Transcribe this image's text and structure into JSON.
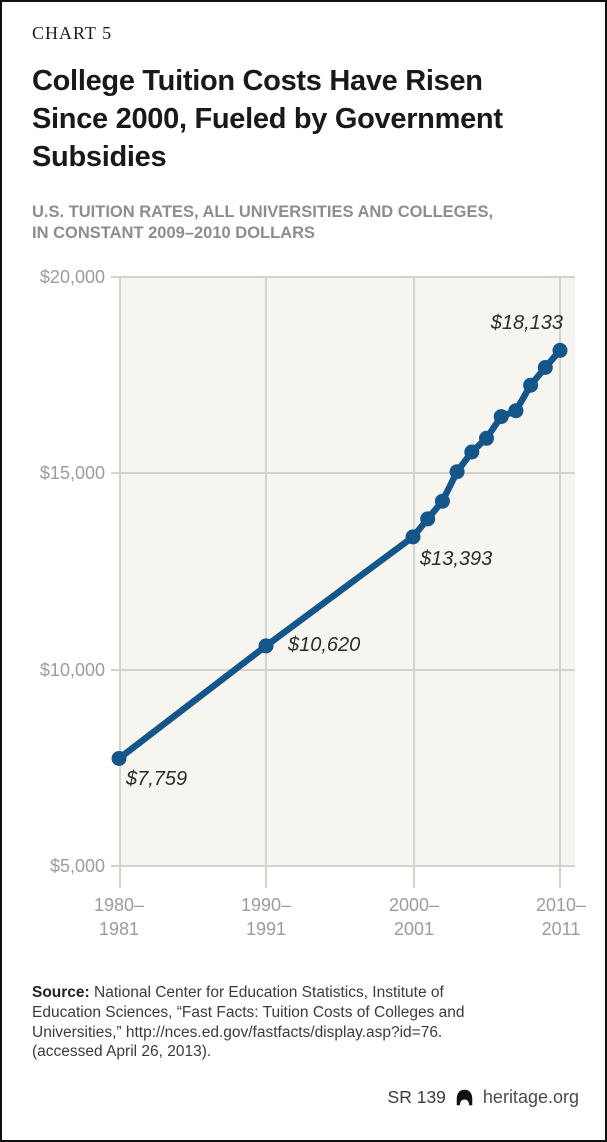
{
  "header": {
    "kicker": "CHART 5",
    "title_lines": [
      "College Tuition Costs Have Risen",
      "Since 2000, Fueled by Government",
      "Subsidies"
    ],
    "subtitle_lines": [
      "U.S. TUITION RATES, ALL UNIVERSITIES AND COLLEGES,",
      "IN CONSTANT 2009–2010 DOLLARS"
    ]
  },
  "chart_data": {
    "type": "line",
    "title": "U.S. tuition rates, all universities and colleges, in constant 2009–2010 dollars",
    "x_range": [
      1980,
      2010
    ],
    "ylim": [
      5000,
      20000
    ],
    "grid": true,
    "plot_bg": "#f6f5ef",
    "gridline_color": "#d3d2cb",
    "y_ticks": [
      {
        "value": 20000,
        "label": "$20,000"
      },
      {
        "value": 15000,
        "label": "$15,000"
      },
      {
        "value": 10000,
        "label": "$10,000"
      },
      {
        "value": 5000,
        "label": "$5,000"
      }
    ],
    "x_ticks": [
      {
        "year": 1980,
        "line1": "1980–",
        "line2": "1981"
      },
      {
        "year": 1990,
        "line1": "1990–",
        "line2": "1991"
      },
      {
        "year": 2000,
        "line1": "2000–",
        "line2": "2001"
      },
      {
        "year": 2010,
        "line1": "2010–",
        "line2": "2011"
      }
    ],
    "series": [
      {
        "name": "U.S. tuition rates",
        "color": "#15568a",
        "points": [
          {
            "year": 1980,
            "value": 7759
          },
          {
            "year": 1990,
            "value": 10620
          },
          {
            "year": 2000,
            "value": 13393
          },
          {
            "year": 2001,
            "value": 13850
          },
          {
            "year": 2002,
            "value": 14300
          },
          {
            "year": 2003,
            "value": 15050
          },
          {
            "year": 2004,
            "value": 15550
          },
          {
            "year": 2005,
            "value": 15900
          },
          {
            "year": 2006,
            "value": 16450
          },
          {
            "year": 2007,
            "value": 16600
          },
          {
            "year": 2008,
            "value": 17250
          },
          {
            "year": 2009,
            "value": 17700
          },
          {
            "year": 2010,
            "value": 18133
          }
        ]
      }
    ],
    "point_labels": [
      {
        "year": 1980,
        "text": "$7,759"
      },
      {
        "year": 1990,
        "text": "$10,620"
      },
      {
        "year": 2000,
        "text": "$13,393"
      },
      {
        "year": 2010,
        "text": "$18,133"
      }
    ]
  },
  "source": {
    "bold_prefix": "Source:",
    "lines": [
      "National Center for Education Statistics, Institute of",
      "Education Sciences, “Fast Facts: Tuition Costs of Colleges and",
      "Universities,” http://nces.ed.gov/fastfacts/display.asp?id=76.",
      "(accessed April 26, 2013)."
    ]
  },
  "footer": {
    "report_id": "SR 139",
    "logo_icon": "heritage-bell-icon",
    "site": "heritage.org"
  }
}
